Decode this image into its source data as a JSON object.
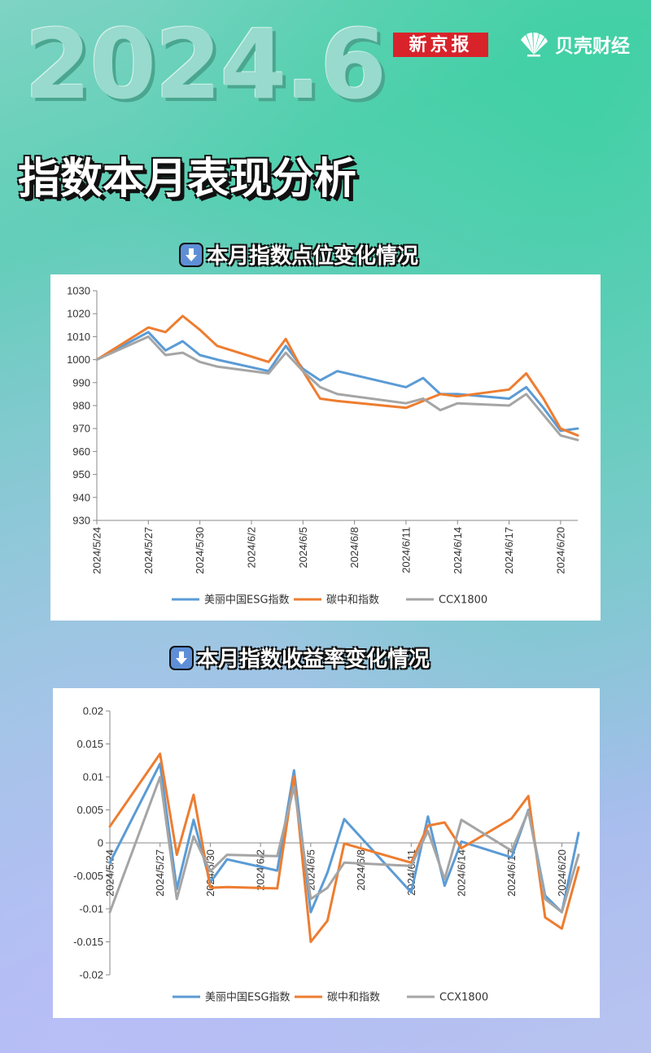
{
  "header": {
    "year_text": "2024.6",
    "xjb_logo": "新京报",
    "beike_logo": "贝壳财经",
    "title": "指数本月表现分析"
  },
  "sections": [
    {
      "title": "本月指数点位变化情况",
      "icon": "down-arrow-icon"
    },
    {
      "title": "本月指数收益率变化情况",
      "icon": "down-arrow-icon"
    }
  ],
  "colors": {
    "esg": "#5b9bd5",
    "carbon": "#ed7d31",
    "ccx": "#a5a5a5"
  },
  "chart_data": [
    {
      "type": "line",
      "title": "",
      "x_tick_labels": [
        "2024/5/24",
        "2024/5/27",
        "2024/5/30",
        "2024/6/2",
        "2024/6/5",
        "2024/6/8",
        "2024/6/11",
        "2024/6/14",
        "2024/6/17",
        "2024/6/20"
      ],
      "xlim": [
        "2024/5/24",
        "2024/6/21"
      ],
      "ylim": [
        930,
        1030
      ],
      "y_ticks": [
        930,
        940,
        950,
        960,
        970,
        980,
        990,
        1000,
        1010,
        1020,
        1030
      ],
      "grid": false,
      "legend": "bottom",
      "x": [
        "2024/5/24",
        "2024/5/27",
        "2024/5/28",
        "2024/5/29",
        "2024/5/30",
        "2024/5/31",
        "2024/6/3",
        "2024/6/4",
        "2024/6/5",
        "2024/6/6",
        "2024/6/7",
        "2024/6/11",
        "2024/6/12",
        "2024/6/13",
        "2024/6/14",
        "2024/6/17",
        "2024/6/18",
        "2024/6/19",
        "2024/6/20",
        "2024/6/21"
      ],
      "series": [
        {
          "name": "美丽中国ESG指数",
          "values": [
            1000,
            1012,
            1004,
            1008,
            1002,
            1000,
            995,
            1006,
            996,
            991,
            995,
            988,
            992,
            985,
            985,
            983,
            988,
            979,
            969,
            970
          ]
        },
        {
          "name": "碳中和指数",
          "values": [
            1000,
            1014,
            1012,
            1019,
            1013,
            1006,
            999,
            1009,
            995,
            983,
            982,
            979,
            982,
            985,
            984,
            987,
            994,
            983,
            970,
            967
          ]
        },
        {
          "name": "CCX1800",
          "values": [
            1000,
            1010,
            1002,
            1003,
            999,
            997,
            994,
            1003,
            995,
            988,
            985,
            981,
            983,
            978,
            981,
            980,
            985,
            976,
            967,
            965
          ]
        }
      ]
    },
    {
      "type": "line",
      "title": "",
      "x_tick_labels": [
        "2024/5/24",
        "2024/5/27",
        "2024/5/30",
        "2024/6/2",
        "2024/6/5",
        "2024/6/8",
        "2024/6/11",
        "2024/6/14",
        "2024/6/17",
        "2024/6/20"
      ],
      "xlim": [
        "2024/5/24",
        "2024/6/21"
      ],
      "ylim": [
        -0.02,
        0.02
      ],
      "y_ticks": [
        -0.02,
        -0.015,
        -0.01,
        -0.005,
        0,
        0.005,
        0.01,
        0.015,
        0.02
      ],
      "grid": false,
      "legend": "bottom",
      "x": [
        "2024/5/24",
        "2024/5/27",
        "2024/5/28",
        "2024/5/29",
        "2024/5/30",
        "2024/5/31",
        "2024/6/3",
        "2024/6/4",
        "2024/6/5",
        "2024/6/6",
        "2024/6/7",
        "2024/6/11",
        "2024/6/12",
        "2024/6/13",
        "2024/6/14",
        "2024/6/17",
        "2024/6/18",
        "2024/6/19",
        "2024/6/20",
        "2024/6/21"
      ],
      "series": [
        {
          "name": "美丽中国ESG指数",
          "values": [
            -0.003,
            0.012,
            -0.007,
            0.0035,
            -0.006,
            -0.0025,
            -0.0042,
            0.011,
            -0.0105,
            -0.0045,
            0.0036,
            -0.0075,
            0.004,
            -0.0065,
            0.0002,
            -0.0022,
            0.005,
            -0.008,
            -0.0105,
            0.0015
          ]
        },
        {
          "name": "碳中和指数",
          "values": [
            0.0025,
            0.0135,
            -0.0018,
            0.0073,
            -0.0068,
            -0.0067,
            -0.0069,
            0.0101,
            -0.015,
            -0.0118,
            -0.0001,
            -0.003,
            0.0026,
            0.0031,
            -0.0008,
            0.0037,
            0.0071,
            -0.0113,
            -0.013,
            -0.0037
          ]
        },
        {
          "name": "CCX1800",
          "values": [
            -0.0105,
            0.01,
            -0.0085,
            0.001,
            -0.0043,
            -0.0018,
            -0.002,
            0.0085,
            -0.0085,
            -0.0068,
            -0.003,
            -0.0035,
            0.0018,
            -0.0055,
            0.0035,
            -0.0012,
            0.0048,
            -0.0085,
            -0.0105,
            -0.0018
          ]
        }
      ]
    }
  ]
}
